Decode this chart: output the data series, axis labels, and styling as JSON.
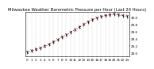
{
  "title": "Milwaukee Weather Barometric Pressure per Hour (Last 24 Hours)",
  "hours": [
    0,
    1,
    2,
    3,
    4,
    5,
    6,
    7,
    8,
    9,
    10,
    11,
    12,
    13,
    14,
    15,
    16,
    17,
    18,
    19,
    20,
    21,
    22,
    23
  ],
  "pressure": [
    29.01,
    29.05,
    29.09,
    29.13,
    29.18,
    29.23,
    29.3,
    29.36,
    29.44,
    29.5,
    29.58,
    29.65,
    29.72,
    29.8,
    29.87,
    29.93,
    29.98,
    30.02,
    30.05,
    30.07,
    30.09,
    30.07,
    30.05,
    30.03
  ],
  "ylim": [
    28.9,
    30.15
  ],
  "yticks": [
    29.0,
    29.2,
    29.4,
    29.6,
    29.8,
    30.0
  ],
  "ytick_labels": [
    "29.0",
    "29.2",
    "29.4",
    "29.6",
    "29.8",
    "30.0"
  ],
  "background_color": "#ffffff",
  "plot_bg_color": "#ffffff",
  "line_color": "#dd0000",
  "marker_color": "#000000",
  "grid_color": "#bbbbbb",
  "title_fontsize": 3.8,
  "tick_fontsize": 3.0,
  "title_color": "#000000"
}
